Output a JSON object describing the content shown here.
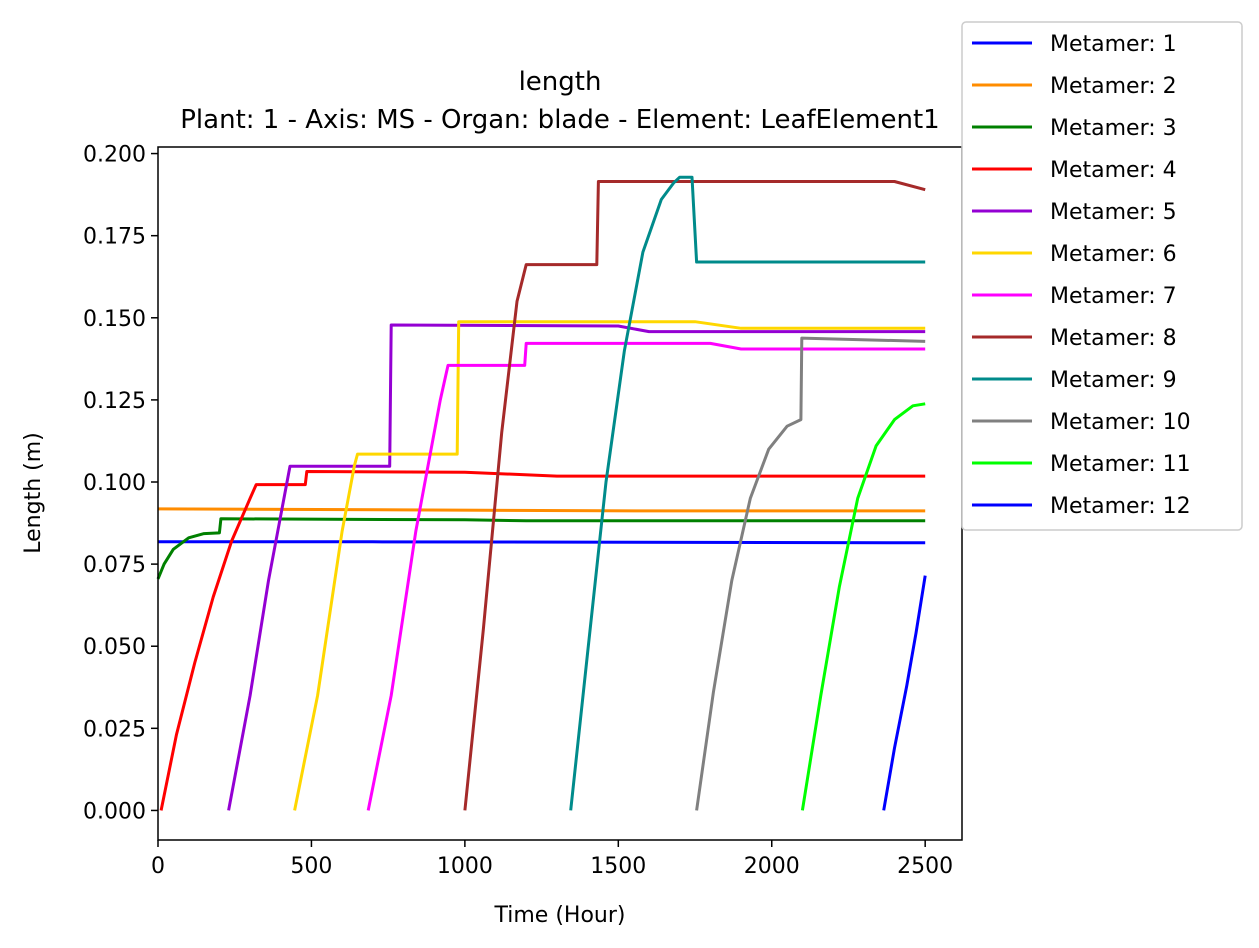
{
  "chart_data": {
    "type": "line",
    "title": "length",
    "subtitle": "Plant: 1 - Axis: MS - Organ: blade - Element: LeafElement1",
    "xlabel": "Time (Hour)",
    "ylabel": "Length (m)",
    "xlim": [
      0,
      2620
    ],
    "ylim": [
      -0.009,
      0.202
    ],
    "xticks": [
      0,
      500,
      1000,
      1500,
      2000,
      2500
    ],
    "yticks": [
      0.0,
      0.025,
      0.05,
      0.075,
      0.1,
      0.125,
      0.15,
      0.175,
      0.2
    ],
    "xtick_labels": [
      "0",
      "500",
      "1000",
      "1500",
      "2000",
      "2500"
    ],
    "ytick_labels": [
      "0.000",
      "0.025",
      "0.050",
      "0.075",
      "0.100",
      "0.125",
      "0.150",
      "0.175",
      "0.200"
    ],
    "grid": false,
    "legend_position": "outside-top-right",
    "series": [
      {
        "name": "Metamer: 1",
        "color": "#0000ff",
        "x": [
          0,
          700,
          2500
        ],
        "y": [
          0.0818,
          0.0818,
          0.0815
        ]
      },
      {
        "name": "Metamer: 2",
        "color": "#ff8c00",
        "x": [
          0,
          800,
          1600,
          2500
        ],
        "y": [
          0.0918,
          0.0915,
          0.0912,
          0.0912
        ]
      },
      {
        "name": "Metamer: 3",
        "color": "#008000",
        "x": [
          0,
          20,
          50,
          100,
          150,
          200,
          205,
          1000,
          1200,
          2500
        ],
        "y": [
          0.0705,
          0.075,
          0.0795,
          0.083,
          0.0843,
          0.0845,
          0.0888,
          0.0885,
          0.0882,
          0.0882
        ]
      },
      {
        "name": "Metamer: 4",
        "color": "#ff0000",
        "x": [
          10,
          60,
          120,
          180,
          240,
          300,
          320,
          480,
          485,
          1000,
          1300,
          2500
        ],
        "y": [
          0.0,
          0.023,
          0.045,
          0.065,
          0.082,
          0.095,
          0.0992,
          0.0992,
          0.1032,
          0.103,
          0.1018,
          0.1018
        ]
      },
      {
        "name": "Metamer: 5",
        "color": "#9400d3",
        "x": [
          230,
          300,
          360,
          430,
          755,
          760,
          1500,
          1600,
          2500
        ],
        "y": [
          0.0,
          0.035,
          0.07,
          0.1048,
          0.1048,
          0.1478,
          0.1475,
          0.1458,
          0.1458
        ]
      },
      {
        "name": "Metamer: 6",
        "color": "#ffd700",
        "x": [
          445,
          520,
          600,
          640,
          650,
          975,
          980,
          1750,
          1900,
          2500
        ],
        "y": [
          0.0,
          0.035,
          0.085,
          0.105,
          0.1085,
          0.1085,
          0.1488,
          0.1488,
          0.1468,
          0.1468
        ]
      },
      {
        "name": "Metamer: 7",
        "color": "#ff00ff",
        "x": [
          685,
          760,
          840,
          920,
          945,
          1195,
          1200,
          1800,
          1900,
          2500
        ],
        "y": [
          0.0,
          0.035,
          0.085,
          0.125,
          0.1355,
          0.1355,
          0.1422,
          0.1422,
          0.1405,
          0.1405
        ]
      },
      {
        "name": "Metamer: 8",
        "color": "#a52a2a",
        "x": [
          1000,
          1060,
          1120,
          1170,
          1200,
          1430,
          1435,
          2400,
          2500
        ],
        "y": [
          0.0,
          0.055,
          0.115,
          0.155,
          0.1662,
          0.1662,
          0.1915,
          0.1915,
          0.189
        ]
      },
      {
        "name": "Metamer: 9",
        "color": "#008b8b",
        "x": [
          1345,
          1400,
          1460,
          1520,
          1580,
          1640,
          1680,
          1700,
          1740,
          1755,
          2500
        ],
        "y": [
          0.0,
          0.048,
          0.1,
          0.14,
          0.17,
          0.186,
          0.191,
          0.1928,
          0.1928,
          0.167,
          0.167
        ]
      },
      {
        "name": "Metamer: 10",
        "color": "#808080",
        "x": [
          1755,
          1810,
          1870,
          1930,
          1990,
          2050,
          2095,
          2098,
          2500
        ],
        "y": [
          0.0,
          0.036,
          0.07,
          0.095,
          0.11,
          0.117,
          0.119,
          0.1438,
          0.1428
        ]
      },
      {
        "name": "Metamer: 11",
        "color": "#00ff00",
        "x": [
          2100,
          2160,
          2220,
          2280,
          2340,
          2400,
          2460,
          2500
        ],
        "y": [
          0.0,
          0.035,
          0.068,
          0.095,
          0.111,
          0.119,
          0.1232,
          0.1238
        ]
      },
      {
        "name": "Metamer: 12",
        "color": "#0000ff",
        "x": [
          2365,
          2400,
          2440,
          2470,
          2500
        ],
        "y": [
          0.0,
          0.019,
          0.038,
          0.054,
          0.0715
        ]
      }
    ]
  }
}
